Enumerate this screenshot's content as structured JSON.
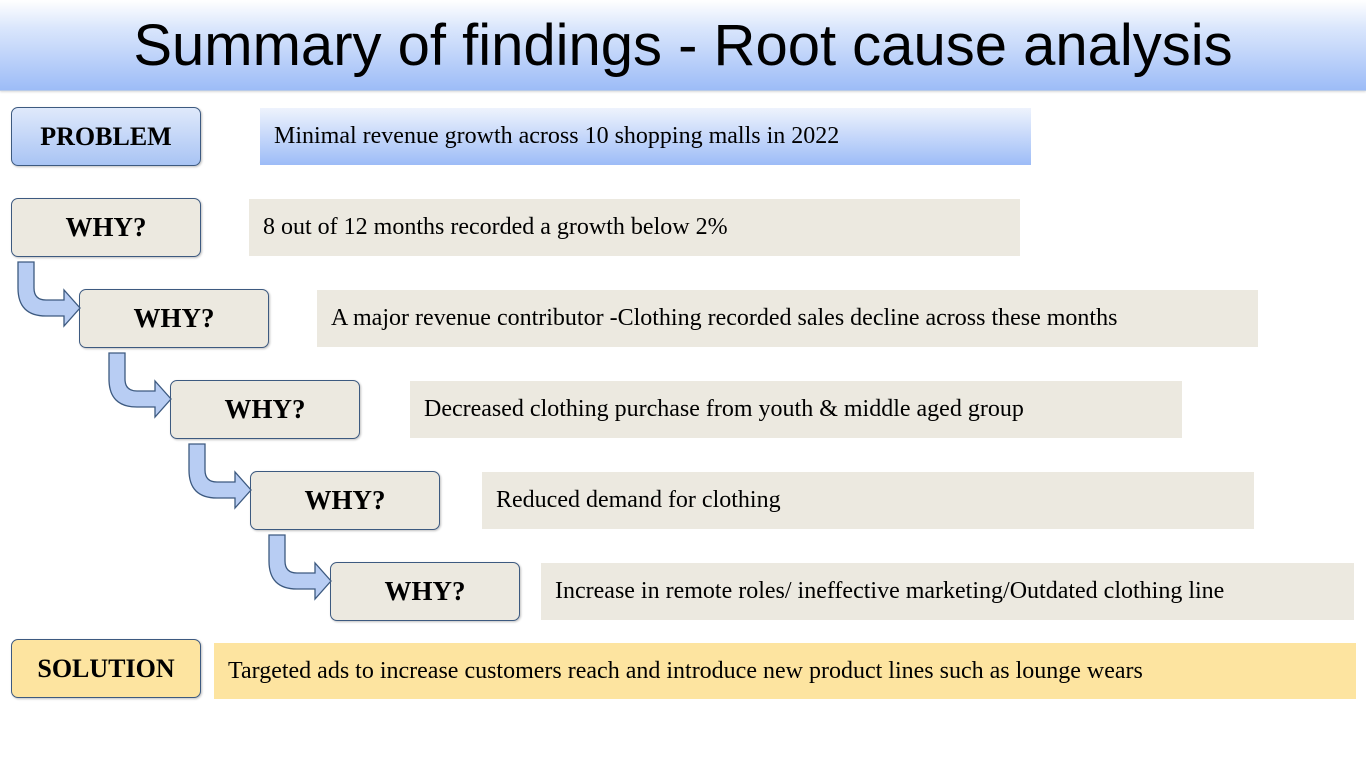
{
  "title": "Summary of findings - Root cause analysis",
  "problem": {
    "label": "PROBLEM",
    "text": "Minimal revenue growth across 10 shopping malls in 2022"
  },
  "whys": [
    {
      "label": "WHY?",
      "text": "8 out of 12 months recorded a growth below 2%"
    },
    {
      "label": "WHY?",
      "text": "A major revenue contributor -Clothing recorded sales decline across these months"
    },
    {
      "label": "WHY?",
      "text": "Decreased clothing purchase from youth & middle aged group"
    },
    {
      "label": "WHY?",
      "text": "Reduced demand for clothing"
    },
    {
      "label": "WHY?",
      "text": "Increase in remote roles/ ineffective marketing/Outdated clothing line"
    }
  ],
  "solution": {
    "label": "SOLUTION",
    "text": "Targeted ads to increase customers reach and  introduce new product lines  such as lounge wears"
  },
  "colors": {
    "problem_fill": "#a9c4f4",
    "why_fill": "#ece9e0",
    "solution_fill": "#fde4a0",
    "arrow_fill": "#b8cdf3",
    "arrow_stroke": "#3d5a80"
  }
}
